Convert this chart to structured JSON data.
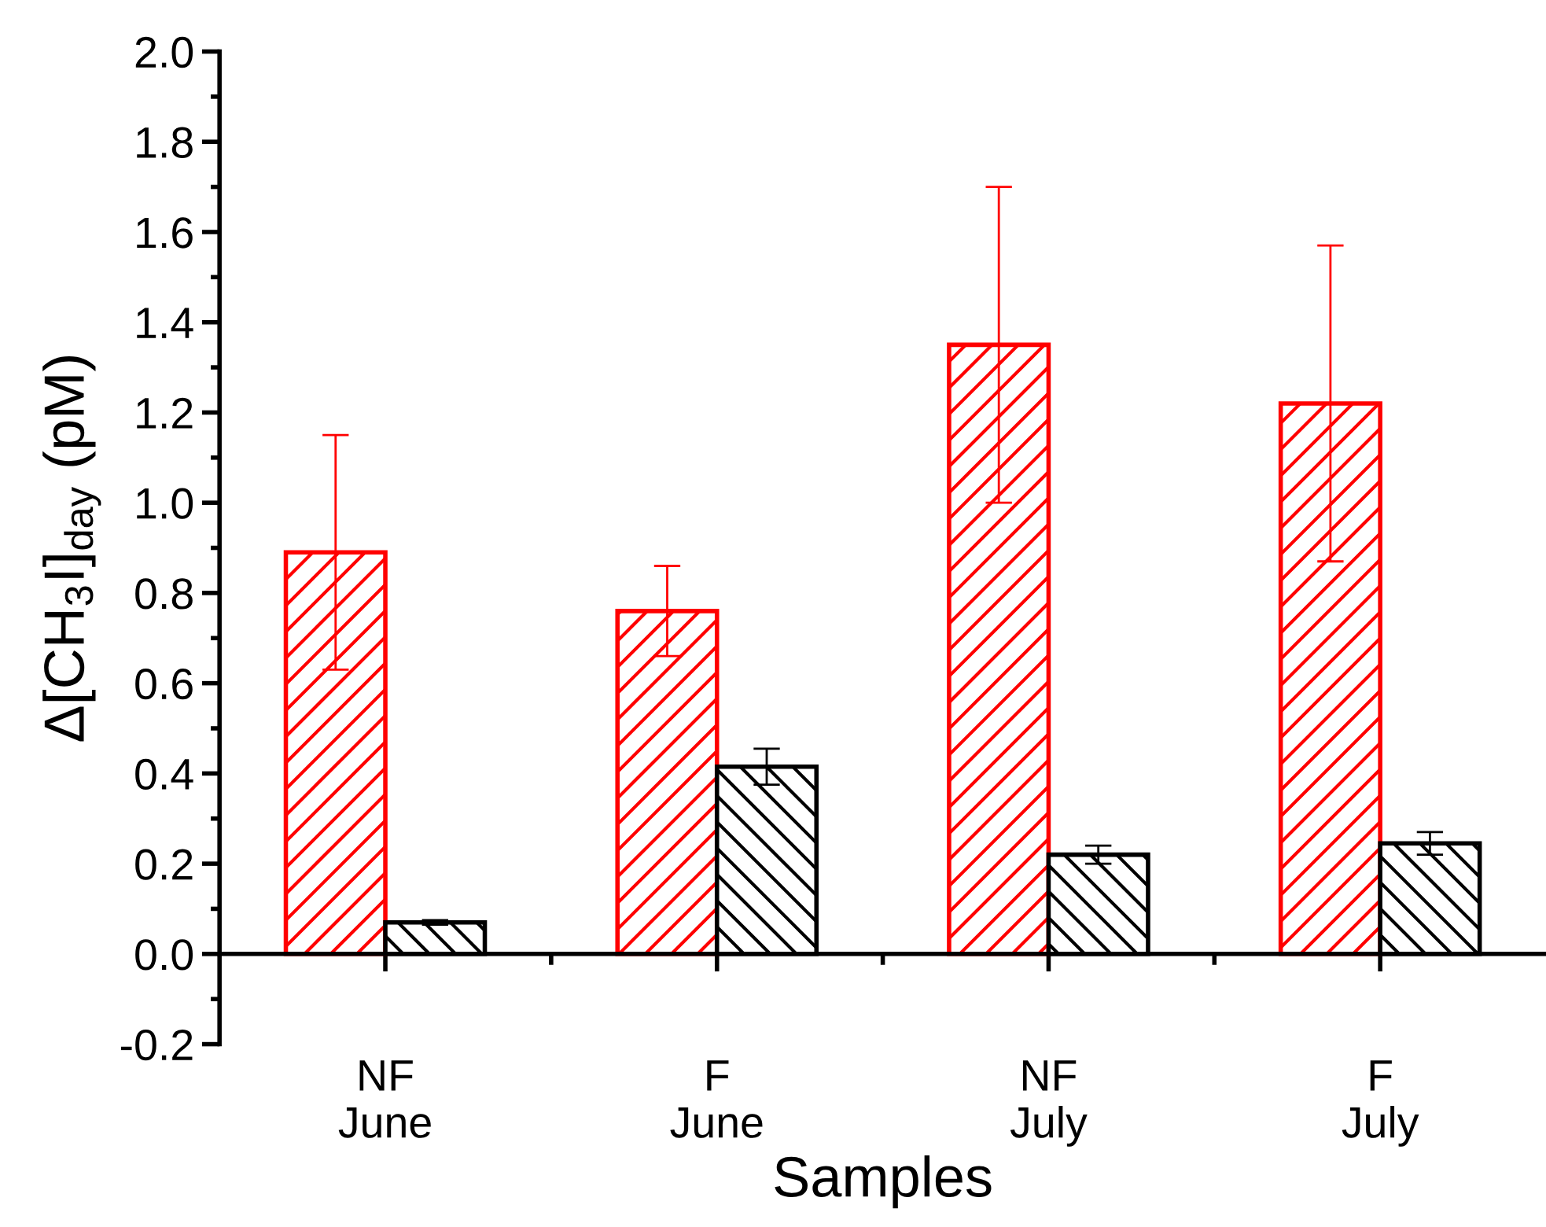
{
  "chart_data": {
    "type": "bar",
    "xlabel": "Samples",
    "ylabel": "Δ[CH$_{3}$I]$_{day}$ (pM)",
    "categories": [
      "NF\nJune",
      "F\nJune",
      "NF\nJuly",
      "F\nJuly"
    ],
    "series": [
      {
        "color": "#ff0000",
        "values": [
          0.89,
          0.76,
          1.35,
          1.22
        ],
        "errors": [
          0.26,
          0.1,
          0.35,
          0.35
        ]
      },
      {
        "color": "#000000",
        "values": [
          0.07,
          0.415,
          0.22,
          0.245
        ],
        "errors": [
          0.005,
          0.04,
          0.02,
          0.025
        ]
      }
    ],
    "ylim": [
      -0.2,
      2.0
    ],
    "yticks": [
      -0.2,
      {
        "value": 0,
        "label": "0.0"
      },
      0.2,
      0.4,
      0.6,
      0.8,
      {
        "value": 1,
        "label": "1.0"
      },
      1.2,
      1.4,
      1.6,
      1.8,
      {
        "value": 2,
        "label": "2.0"
      }
    ]
  }
}
